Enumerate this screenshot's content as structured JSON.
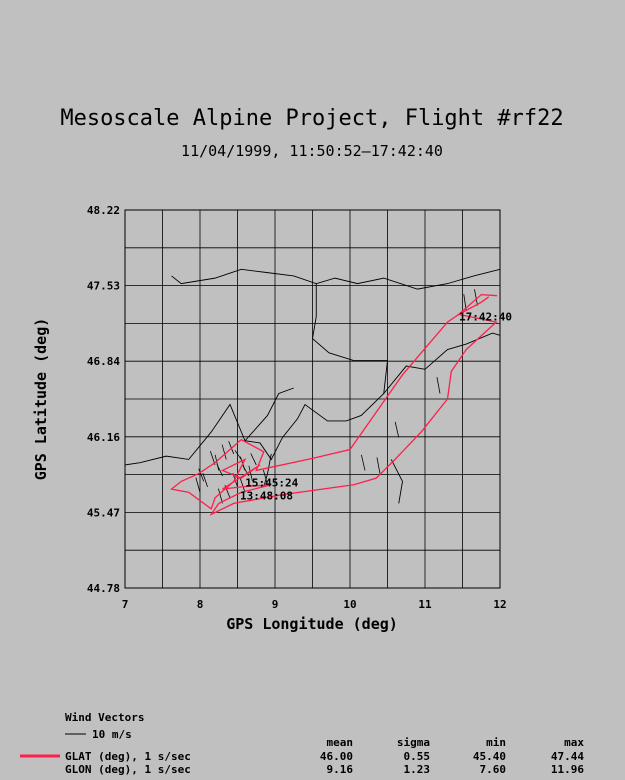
{
  "chart_data": {
    "type": "line",
    "title": "Mesoscale Alpine Project, Flight #rf22",
    "subtitle": "11/04/1999, 11:50:52–17:42:40",
    "xlabel": "GPS Longitude (deg)",
    "ylabel": "GPS Latitude (deg)",
    "xlim": [
      7,
      12
    ],
    "ylim": [
      44.78,
      48.22
    ],
    "x_tick_labels": [
      "7",
      "8",
      "9",
      "10",
      "11",
      "12"
    ],
    "y_tick_labels": [
      "44.78",
      "45.47",
      "46.16",
      "46.84",
      "47.53",
      "48.22"
    ],
    "grid": true,
    "track_color": "#ff1f4b",
    "track": [
      [
        11.96,
        47.44
      ],
      [
        11.75,
        47.45
      ],
      [
        11.45,
        47.27
      ],
      [
        11.3,
        47.2
      ],
      [
        10.7,
        46.72
      ],
      [
        10.0,
        46.04
      ],
      [
        9.5,
        45.96
      ],
      [
        8.75,
        45.85
      ],
      [
        8.85,
        46.02
      ],
      [
        8.55,
        46.13
      ],
      [
        8.2,
        45.92
      ],
      [
        7.98,
        45.82
      ],
      [
        7.75,
        45.75
      ],
      [
        7.62,
        45.68
      ],
      [
        7.85,
        45.65
      ],
      [
        8.15,
        45.5
      ],
      [
        8.2,
        45.6
      ],
      [
        8.45,
        45.75
      ],
      [
        8.6,
        45.95
      ],
      [
        8.3,
        45.85
      ],
      [
        8.55,
        45.78
      ],
      [
        8.8,
        45.9
      ],
      [
        8.3,
        45.68
      ],
      [
        8.55,
        45.7
      ],
      [
        8.95,
        45.72
      ],
      [
        8.55,
        45.65
      ],
      [
        8.25,
        45.55
      ],
      [
        8.15,
        45.45
      ],
      [
        8.45,
        45.55
      ],
      [
        9.1,
        45.63
      ],
      [
        10.05,
        45.72
      ],
      [
        10.35,
        45.78
      ],
      [
        10.6,
        45.95
      ],
      [
        10.95,
        46.2
      ],
      [
        11.3,
        46.5
      ],
      [
        11.35,
        46.75
      ],
      [
        11.55,
        46.95
      ],
      [
        11.95,
        47.2
      ],
      [
        11.45,
        47.27
      ],
      [
        11.75,
        47.38
      ],
      [
        11.85,
        47.43
      ]
    ],
    "annotations": [
      {
        "text": "17:42:40",
        "x": 11.4,
        "y": 47.25
      },
      {
        "text": "15:45:24",
        "x": 8.55,
        "y": 45.74
      },
      {
        "text": "13:48:08",
        "x": 8.48,
        "y": 45.62
      }
    ],
    "map_outlines": [
      [
        [
          7.62,
          47.62
        ],
        [
          7.75,
          47.55
        ],
        [
          8.2,
          47.6
        ],
        [
          8.55,
          47.68
        ],
        [
          8.9,
          47.65
        ],
        [
          9.25,
          47.62
        ],
        [
          9.55,
          47.55
        ],
        [
          9.8,
          47.6
        ],
        [
          10.1,
          47.55
        ],
        [
          10.45,
          47.6
        ],
        [
          10.9,
          47.5
        ],
        [
          11.3,
          47.55
        ],
        [
          11.65,
          47.62
        ],
        [
          12.0,
          47.68
        ]
      ],
      [
        [
          9.55,
          47.55
        ],
        [
          9.55,
          47.25
        ],
        [
          9.5,
          47.05
        ],
        [
          9.72,
          46.92
        ],
        [
          10.05,
          46.85
        ],
        [
          10.5,
          46.85
        ],
        [
          10.45,
          46.55
        ],
        [
          10.15,
          46.35
        ],
        [
          9.95,
          46.3
        ],
        [
          9.7,
          46.3
        ],
        [
          9.4,
          46.45
        ],
        [
          9.3,
          46.32
        ],
        [
          9.1,
          46.15
        ],
        [
          8.95,
          45.95
        ],
        [
          8.8,
          46.1
        ],
        [
          8.6,
          46.12
        ],
        [
          8.4,
          46.45
        ],
        [
          8.15,
          46.2
        ],
        [
          7.85,
          45.95
        ],
        [
          7.55,
          45.98
        ],
        [
          7.2,
          45.92
        ],
        [
          7.0,
          45.9
        ]
      ],
      [
        [
          8.6,
          46.12
        ],
        [
          8.9,
          46.35
        ],
        [
          9.05,
          46.55
        ],
        [
          9.25,
          46.6
        ]
      ],
      [
        [
          10.45,
          46.55
        ],
        [
          10.75,
          46.8
        ],
        [
          11.0,
          46.77
        ],
        [
          11.3,
          46.95
        ],
        [
          11.55,
          47.0
        ],
        [
          11.9,
          47.1
        ],
        [
          12.0,
          47.08
        ]
      ],
      [
        [
          8.95,
          46.0
        ],
        [
          8.9,
          45.82
        ],
        [
          8.85,
          45.7
        ]
      ],
      [
        [
          10.55,
          45.95
        ],
        [
          10.7,
          45.75
        ],
        [
          10.65,
          45.55
        ]
      ]
    ],
    "wind_vectors": [
      [
        8.2,
        45.9,
        40
      ],
      [
        8.25,
        45.85,
        30
      ],
      [
        8.3,
        45.8,
        50
      ],
      [
        8.35,
        45.95,
        35
      ],
      [
        8.45,
        46.0,
        45
      ],
      [
        8.55,
        45.95,
        60
      ],
      [
        8.6,
        45.85,
        40
      ],
      [
        8.65,
        45.8,
        55
      ],
      [
        8.7,
        45.75,
        30
      ],
      [
        8.75,
        45.9,
        50
      ],
      [
        8.1,
        45.7,
        40
      ],
      [
        8.0,
        45.65,
        35
      ],
      [
        8.05,
        45.75,
        45
      ],
      [
        8.5,
        45.7,
        40
      ],
      [
        8.9,
        45.72,
        35
      ],
      [
        10.2,
        45.85,
        30
      ],
      [
        10.4,
        45.82,
        25
      ],
      [
        10.65,
        46.15,
        30
      ],
      [
        11.2,
        46.55,
        25
      ],
      [
        11.55,
        47.3,
        20
      ],
      [
        11.7,
        47.35,
        25
      ],
      [
        8.4,
        45.6,
        45
      ],
      [
        8.3,
        45.55,
        35
      ],
      [
        8.6,
        45.65,
        40
      ]
    ]
  },
  "legend": {
    "wind_title": "Wind Vectors",
    "wind_scale_label": "10 m/s",
    "stat_headers": [
      "mean",
      "sigma",
      "min",
      "max"
    ],
    "rows": [
      {
        "label": "GLAT (deg), 1 s/sec",
        "mean": "46.00",
        "sigma": "0.55",
        "min": "45.40",
        "max": "47.44"
      },
      {
        "label": "GLON (deg), 1 s/sec",
        "mean": "9.16",
        "sigma": "1.23",
        "min": "7.60",
        "max": "11.96"
      }
    ]
  }
}
